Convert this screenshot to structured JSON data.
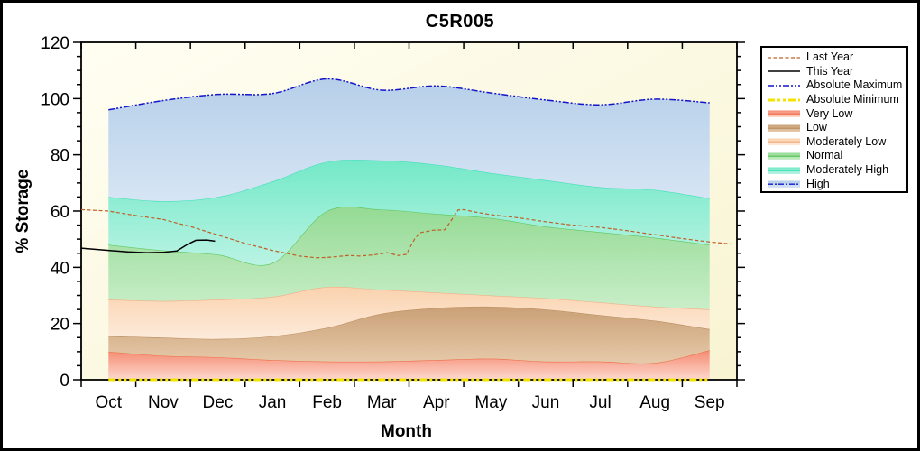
{
  "title": "C5R005",
  "axes": {
    "x_label": "Month",
    "y_label": "% Storage",
    "x_tick_labels": [
      "Oct",
      "Nov",
      "Dec",
      "Jan",
      "Feb",
      "Mar",
      "Apr",
      "May",
      "Jun",
      "Jul",
      "Aug",
      "Sep"
    ],
    "y_tick_labels": [
      "0",
      "20",
      "40",
      "60",
      "80",
      "100",
      "120"
    ],
    "y_min": 0,
    "y_max": 120,
    "y_major_step": 20,
    "y_minor_step": 5
  },
  "colors": {
    "figure_bg": "#ffffff",
    "frame": "#000000",
    "plot_bg_light": "#fffef2",
    "plot_bg_dark": "#f8f4d2",
    "axis": "#000000"
  },
  "legend": {
    "entries": [
      {
        "label": "Last Year",
        "swatch": "line",
        "color": "#bf5f26",
        "dash": "4 2.5",
        "width": 1.2
      },
      {
        "label": "This Year",
        "swatch": "line",
        "color": "#000000",
        "dash": "",
        "width": 1.4
      },
      {
        "label": "Absolute Maximum",
        "swatch": "line",
        "color": "#1414cc",
        "dash": "7 2 2 2 2 2",
        "width": 1.5
      },
      {
        "label": "Absolute Minimum",
        "swatch": "line",
        "color": "#f2e400",
        "dash": "8 3 3 3 3 3",
        "width": 3
      },
      {
        "label": "Very Low",
        "swatch": "band",
        "fill_top": "#f58a70",
        "fill_bottom": "#fcd9cf",
        "line_color": "#ee7150",
        "line_dash": ""
      },
      {
        "label": "Low",
        "swatch": "band",
        "fill_top": "#caa076",
        "fill_bottom": "#e6caaa",
        "line_color": "#bb9164",
        "line_dash": ""
      },
      {
        "label": "Moderately Low",
        "swatch": "band",
        "fill_top": "#fad2ae",
        "fill_bottom": "#fdebdb",
        "line_color": "#f0b088",
        "line_dash": ""
      },
      {
        "label": "Normal",
        "swatch": "band",
        "fill_top": "#94da94",
        "fill_bottom": "#c9eec9",
        "line_color": "#5dc75d",
        "line_dash": ""
      },
      {
        "label": "Moderately High",
        "swatch": "band",
        "fill_top": "#73e9c7",
        "fill_bottom": "#baf3e4",
        "line_color": "#44e0ba",
        "line_dash": ""
      },
      {
        "label": "High",
        "swatch": "band",
        "fill_top": "#b6cfe9",
        "fill_bottom": "#d6e5f4",
        "line_color": "#1414cc",
        "line_dash": "6 2 2 2"
      }
    ]
  },
  "chart_data": {
    "type": "area",
    "title": "C5R005",
    "xlabel": "Month",
    "ylabel": "% Storage",
    "ylim": [
      0,
      120
    ],
    "categories": [
      "Oct",
      "Nov",
      "Dec",
      "Jan",
      "Feb",
      "Mar",
      "Apr",
      "May",
      "Jun",
      "Jul",
      "Aug",
      "Sep"
    ],
    "band_x": "month_centers",
    "bands": [
      {
        "name": "Very Low",
        "top": [
          10,
          8.5,
          8,
          7,
          6.5,
          6.5,
          7,
          7.5,
          6.5,
          6.5,
          6,
          10.5
        ],
        "fill_top": "#f58a70",
        "fill_bottom": "#fcd9cf",
        "edge": "#ee7150"
      },
      {
        "name": "Low",
        "top": [
          15.5,
          15,
          14.5,
          15.5,
          18.5,
          23.5,
          25.5,
          26,
          25,
          23,
          21,
          18
        ],
        "fill_top": "#caa076",
        "fill_bottom": "#e6caaa",
        "edge": "#bb9164"
      },
      {
        "name": "Moderately Low",
        "top": [
          28.5,
          28,
          28.5,
          29.5,
          33,
          32,
          31,
          30,
          29,
          27.5,
          26,
          25
        ],
        "fill_top": "#fad2ae",
        "fill_bottom": "#fdebdb",
        "edge": "#f0b088"
      },
      {
        "name": "Normal",
        "top": [
          48,
          46,
          44.5,
          41.5,
          60,
          60.5,
          59,
          57.5,
          54.5,
          52.5,
          50.5,
          48
        ],
        "fill_top": "#94da94",
        "fill_bottom": "#c9eec9",
        "edge": "#5dc75d"
      },
      {
        "name": "Moderately High",
        "top": [
          65,
          63.5,
          65,
          70.5,
          77.5,
          78,
          76.5,
          73.5,
          71,
          68.5,
          67.5,
          64.5
        ],
        "fill_top": "#73e9c7",
        "fill_bottom": "#baf3e4",
        "edge": "#44e0ba"
      },
      {
        "name": "High",
        "top": [
          96,
          99.3,
          101.5,
          101.8,
          107,
          103,
          104.5,
          102,
          99.5,
          97.8,
          99.8,
          98.5
        ],
        "fill_top": "#b6cfe9",
        "fill_bottom": "#d6e5f4",
        "edge": ""
      }
    ],
    "series": [
      {
        "name": "Absolute Minimum",
        "color": "#f2e400",
        "dash": "8 3 3 3 3 3",
        "width": 3,
        "interp": "linear",
        "points": [
          [
            0.5,
            0
          ],
          [
            11.5,
            0
          ]
        ]
      },
      {
        "name": "Absolute Maximum",
        "color": "#1414cc",
        "dash": "7 2 2 2 2 2",
        "width": 1.5,
        "interp": "smooth",
        "points": [
          [
            0.5,
            96
          ],
          [
            1.5,
            99.3
          ],
          [
            2.5,
            101.5
          ],
          [
            3.5,
            101.8
          ],
          [
            4.5,
            107
          ],
          [
            5.5,
            103
          ],
          [
            6.5,
            104.5
          ],
          [
            7.5,
            102
          ],
          [
            8.5,
            99.5
          ],
          [
            9.5,
            97.8
          ],
          [
            10.5,
            99.8
          ],
          [
            11.5,
            98.5
          ]
        ]
      },
      {
        "name": "Last Year",
        "color": "#bf5f26",
        "dash": "4 2.5",
        "width": 1.2,
        "interp": "linear",
        "points": [
          [
            0,
            60.5
          ],
          [
            0.5,
            60
          ],
          [
            1,
            58.4
          ],
          [
            1.5,
            57
          ],
          [
            2,
            54.5
          ],
          [
            2.5,
            51.5
          ],
          [
            3,
            48.5
          ],
          [
            3.5,
            46
          ],
          [
            4,
            44
          ],
          [
            4.3,
            43.4
          ],
          [
            4.5,
            43.5
          ],
          [
            4.9,
            44.2
          ],
          [
            5.1,
            44
          ],
          [
            5.35,
            44.4
          ],
          [
            5.6,
            45.2
          ],
          [
            5.8,
            44.2
          ],
          [
            5.95,
            44.6
          ],
          [
            6.1,
            50
          ],
          [
            6.2,
            52.3
          ],
          [
            6.45,
            53.2
          ],
          [
            6.65,
            53.3
          ],
          [
            6.75,
            56
          ],
          [
            6.9,
            60.4
          ],
          [
            7,
            60.5
          ],
          [
            7.25,
            59.5
          ],
          [
            7.5,
            58.7
          ],
          [
            8,
            57.6
          ],
          [
            8.5,
            56.2
          ],
          [
            9,
            55
          ],
          [
            9.5,
            54.2
          ],
          [
            10,
            53
          ],
          [
            10.5,
            51.6
          ],
          [
            11,
            50.2
          ],
          [
            11.5,
            49
          ],
          [
            11.9,
            48.3
          ]
        ]
      },
      {
        "name": "This Year",
        "color": "#000000",
        "dash": "",
        "width": 1.5,
        "interp": "linear",
        "points": [
          [
            0,
            46.8
          ],
          [
            0.25,
            46.4
          ],
          [
            0.5,
            46
          ],
          [
            0.85,
            45.5
          ],
          [
            1.2,
            45.2
          ],
          [
            1.5,
            45.3
          ],
          [
            1.75,
            45.8
          ],
          [
            1.95,
            48.2
          ],
          [
            2.1,
            49.6
          ],
          [
            2.3,
            49.7
          ],
          [
            2.45,
            49.3
          ]
        ]
      }
    ]
  }
}
